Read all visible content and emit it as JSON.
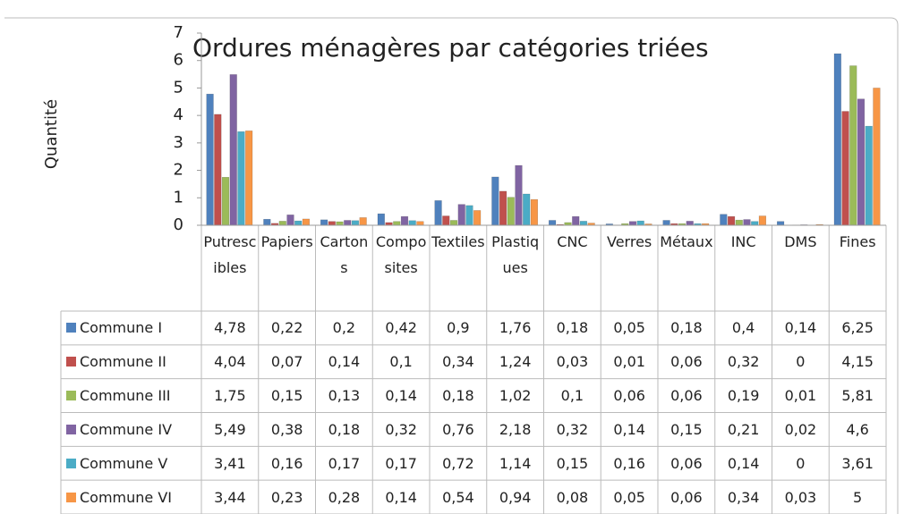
{
  "chart_data": {
    "type": "bar",
    "title": "Ordures ménagères par catégories triées",
    "y_label": "Quantité",
    "categories": [
      "Putrescibles",
      "Papiers",
      "Cartons",
      "Composites",
      "Textiles",
      "Plastiques",
      "CNC",
      "Verres",
      "Métaux",
      "INC",
      "DMS",
      "Fines"
    ],
    "series": [
      {
        "name": "Commune I",
        "color": "#4f81bd",
        "values": [
          4.78,
          0.22,
          0.2,
          0.42,
          0.9,
          1.76,
          0.18,
          0.05,
          0.18,
          0.4,
          0.14,
          6.25
        ],
        "value_labels": [
          "4,78",
          "0,22",
          "0,2",
          "0,42",
          "0,9",
          "1,76",
          "0,18",
          "0,05",
          "0,18",
          "0,4",
          "0,14",
          "6,25"
        ]
      },
      {
        "name": "Commune II",
        "color": "#c0504d",
        "values": [
          4.04,
          0.07,
          0.14,
          0.1,
          0.34,
          1.24,
          0.03,
          0.01,
          0.06,
          0.32,
          0,
          4.15
        ],
        "value_labels": [
          "4,04",
          "0,07",
          "0,14",
          "0,1",
          "0,34",
          "1,24",
          "0,03",
          "0,01",
          "0,06",
          "0,32",
          "0",
          "4,15"
        ]
      },
      {
        "name": "Commune III",
        "color": "#9bbb59",
        "values": [
          1.75,
          0.15,
          0.13,
          0.14,
          0.18,
          1.02,
          0.1,
          0.06,
          0.06,
          0.19,
          0.01,
          5.81
        ],
        "value_labels": [
          "1,75",
          "0,15",
          "0,13",
          "0,14",
          "0,18",
          "1,02",
          "0,1",
          "0,06",
          "0,06",
          "0,19",
          "0,01",
          "5,81"
        ]
      },
      {
        "name": "Commune IV",
        "color": "#8064a2",
        "values": [
          5.49,
          0.38,
          0.18,
          0.32,
          0.76,
          2.18,
          0.32,
          0.14,
          0.15,
          0.21,
          0.02,
          4.6
        ],
        "value_labels": [
          "5,49",
          "0,38",
          "0,18",
          "0,32",
          "0,76",
          "2,18",
          "0,32",
          "0,14",
          "0,15",
          "0,21",
          "0,02",
          "4,6"
        ]
      },
      {
        "name": "Commune V",
        "color": "#4bacc6",
        "values": [
          3.41,
          0.16,
          0.17,
          0.17,
          0.72,
          1.14,
          0.15,
          0.16,
          0.06,
          0.14,
          0,
          3.61
        ],
        "value_labels": [
          "3,41",
          "0,16",
          "0,17",
          "0,17",
          "0,72",
          "1,14",
          "0,15",
          "0,16",
          "0,06",
          "0,14",
          "0",
          "3,61"
        ]
      },
      {
        "name": "Commune VI",
        "color": "#f79646",
        "values": [
          3.44,
          0.23,
          0.28,
          0.14,
          0.54,
          0.94,
          0.08,
          0.05,
          0.06,
          0.34,
          0.03,
          5
        ],
        "value_labels": [
          "3,44",
          "0,23",
          "0,28",
          "0,14",
          "0,54",
          "0,94",
          "0,08",
          "0,05",
          "0,06",
          "0,34",
          "0,03",
          "5"
        ]
      }
    ],
    "ylim": [
      0,
      7
    ],
    "yticks": [
      0,
      1,
      2,
      3,
      4,
      5,
      6,
      7
    ],
    "grid": false
  }
}
